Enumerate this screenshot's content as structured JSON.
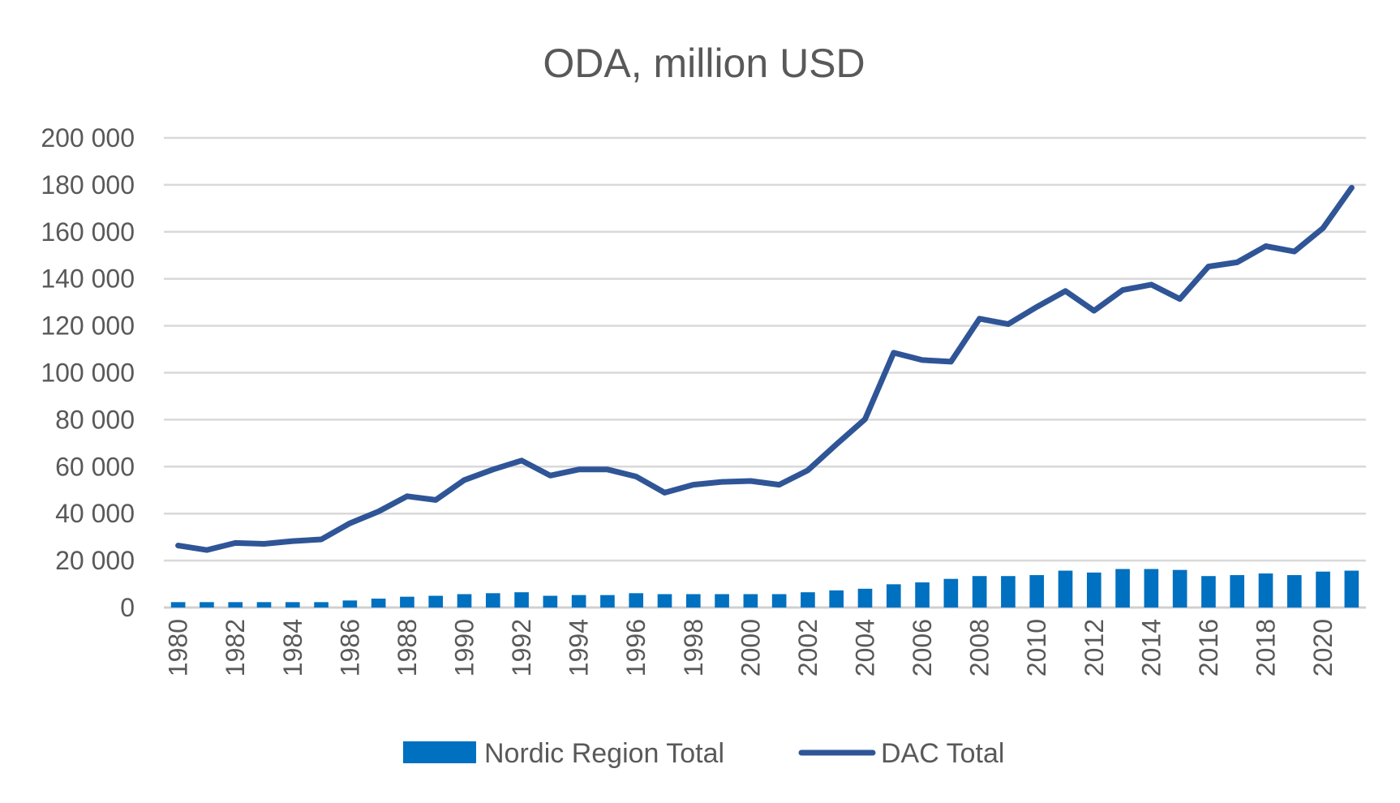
{
  "chart_data": {
    "type": "bar+line",
    "title": "ODA, million USD",
    "xlabel": "",
    "ylabel": "",
    "ylim": [
      0,
      200000
    ],
    "yticks": [
      "0",
      "20 000",
      "40 000",
      "60 000",
      "80 000",
      "100 000",
      "120 000",
      "140 000",
      "160 000",
      "180 000",
      "200 000"
    ],
    "ytick_values": [
      0,
      20000,
      40000,
      60000,
      80000,
      100000,
      120000,
      140000,
      160000,
      180000,
      200000
    ],
    "grid": true,
    "legend_position": "bottom",
    "categories": [
      1980,
      1981,
      1982,
      1983,
      1984,
      1985,
      1986,
      1987,
      1988,
      1989,
      1990,
      1991,
      1992,
      1993,
      1994,
      1995,
      1996,
      1997,
      1998,
      1999,
      2000,
      2001,
      2002,
      2003,
      2004,
      2005,
      2006,
      2007,
      2008,
      2009,
      2010,
      2011,
      2012,
      2013,
      2014,
      2015,
      2016,
      2017,
      2018,
      2019,
      2020,
      2021
    ],
    "xtick_labels": [
      "1980",
      "1982",
      "1984",
      "1986",
      "1988",
      "1990",
      "1992",
      "1994",
      "1996",
      "1998",
      "2000",
      "2002",
      "2004",
      "2006",
      "2008",
      "2010",
      "2012",
      "2014",
      "2016",
      "2018",
      "2020"
    ],
    "series": [
      {
        "name": "Nordic Region Total",
        "type": "bar",
        "color": "#0070C0",
        "values": [
          2300,
          2300,
          2300,
          2300,
          2300,
          2300,
          3000,
          3800,
          4600,
          5000,
          5700,
          6100,
          6500,
          5000,
          5300,
          5300,
          6100,
          5700,
          5700,
          5700,
          5700,
          5700,
          6500,
          7300,
          8000,
          9900,
          10700,
          12200,
          13400,
          13400,
          13800,
          15700,
          14900,
          16400,
          16400,
          16000,
          13400,
          13800,
          14500,
          13800,
          15300,
          15700
        ]
      },
      {
        "name": "DAC Total",
        "type": "line",
        "color": "#2F5597",
        "values": [
          26400,
          24500,
          27500,
          27100,
          28300,
          29000,
          35900,
          40900,
          47400,
          45800,
          54300,
          58800,
          62600,
          56200,
          58800,
          58800,
          55800,
          48900,
          52300,
          53500,
          53900,
          52300,
          58400,
          69500,
          80200,
          108500,
          105400,
          104700,
          123000,
          120700,
          128000,
          134800,
          126400,
          135200,
          137500,
          131400,
          145200,
          147000,
          153900,
          151600,
          161600,
          178800
        ]
      }
    ]
  }
}
